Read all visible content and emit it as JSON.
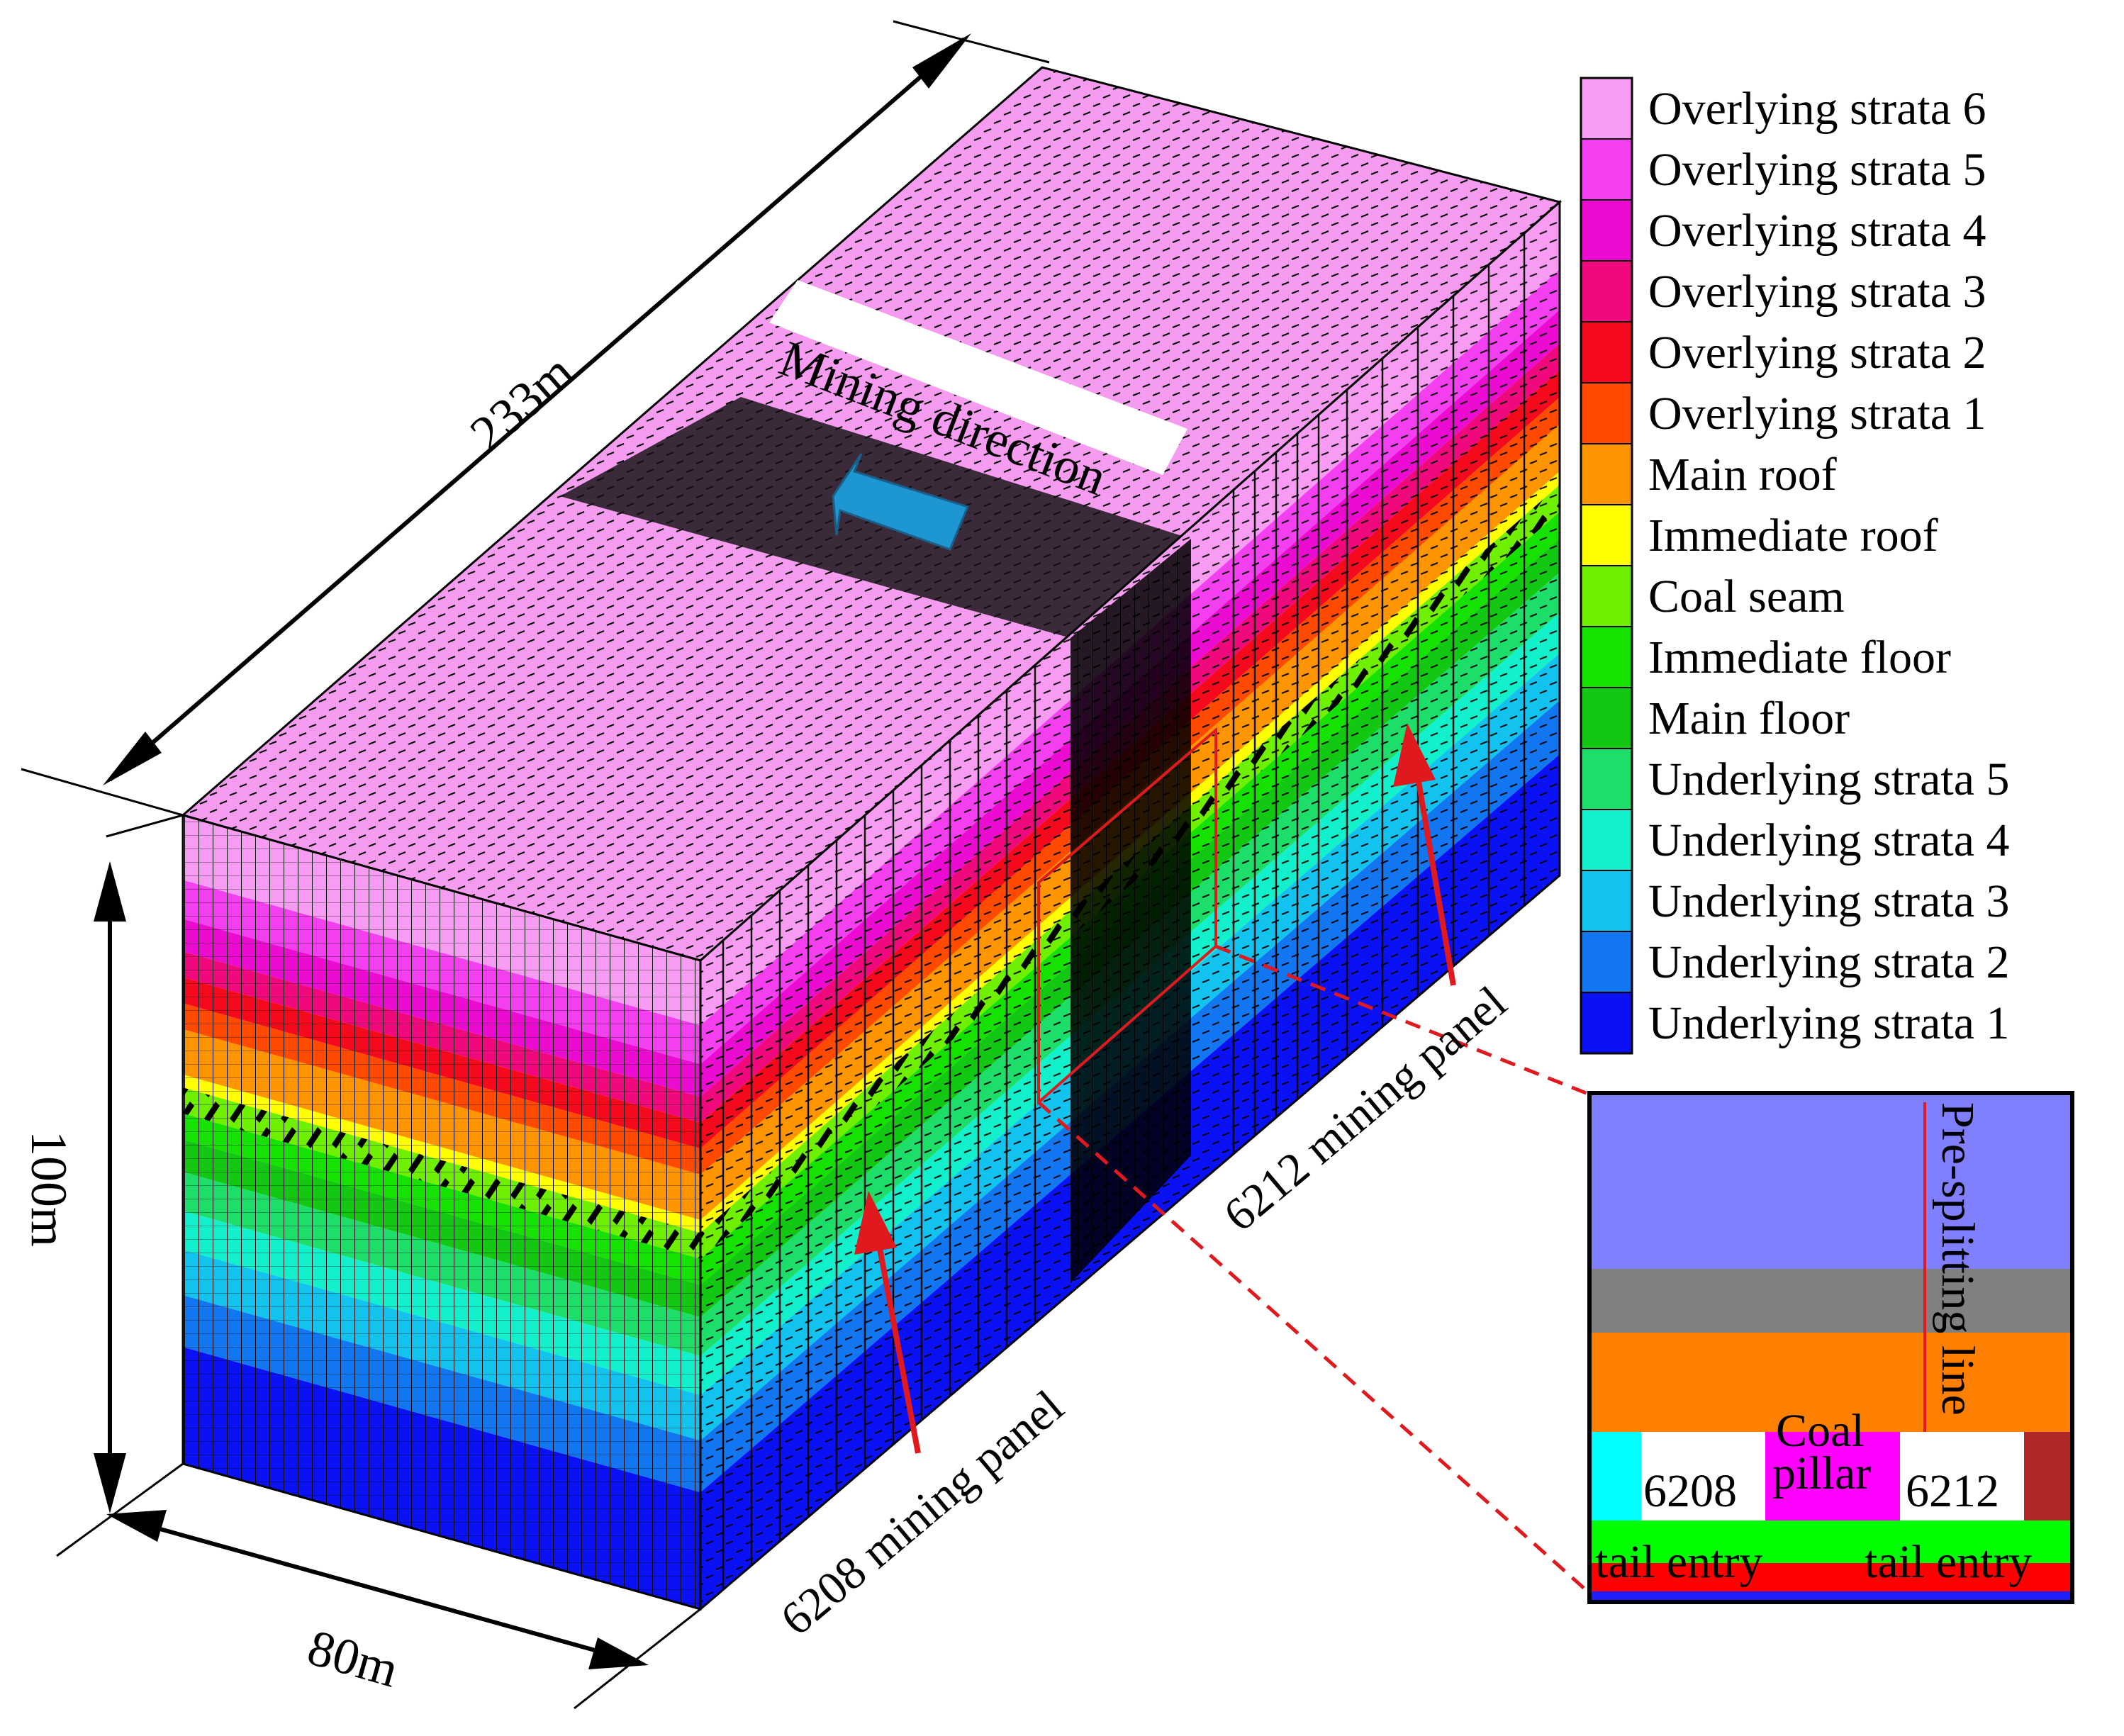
{
  "dimensions": {
    "length": "233m",
    "width": "80m",
    "height": "100m"
  },
  "mining_direction_label": "Mining direction",
  "panels": {
    "left": "6208 mining panel",
    "right": "6212 mining panel"
  },
  "legend": [
    {
      "label": "Overlying strata 6",
      "color": "#f79cf2"
    },
    {
      "label": "Overlying strata 5",
      "color": "#f33fef"
    },
    {
      "label": "Overlying strata 4",
      "color": "#eb0bd1"
    },
    {
      "label": "Overlying strata 3",
      "color": "#f0087d"
    },
    {
      "label": "Overlying strata 2",
      "color": "#f50a1d"
    },
    {
      "label": "Overlying strata 1",
      "color": "#ff4a00"
    },
    {
      "label": "Main roof",
      "color": "#ff9500"
    },
    {
      "label": "Immediate roof",
      "color": "#ffff00"
    },
    {
      "label": "Coal seam",
      "color": "#6ef000"
    },
    {
      "label": "Immediate floor",
      "color": "#15e200"
    },
    {
      "label": "Main floor",
      "color": "#12c812"
    },
    {
      "label": "Underlying strata 5",
      "color": "#1ede6a"
    },
    {
      "label": "Underlying strata 4",
      "color": "#12f0cc"
    },
    {
      "label": "Underlying strata 3",
      "color": "#12c3ef"
    },
    {
      "label": "Underlying strata 2",
      "color": "#1276f0"
    },
    {
      "label": "Underlying strata 1",
      "color": "#0a12f5"
    }
  ],
  "inset": {
    "presplit_label": "Pre-splitting line",
    "coal_pillar_line1": "Coal",
    "coal_pillar_line2": "pillar",
    "entry_left_number": "6208",
    "entry_right_number": "6212",
    "entry_left_label": "tail entry",
    "entry_right_label": "tail entry",
    "colors": {
      "upper": "#8080ff",
      "gray": "#808080",
      "orange": "#ff8000",
      "cyan": "#00ffff",
      "magenta": "#ff00ff",
      "brown": "#b02828",
      "green": "#00ff00",
      "red": "#ff0000",
      "blue": "#2020ff"
    }
  },
  "arrow_color": "#e0191e",
  "direction_arrow_color": "#1e96d2"
}
